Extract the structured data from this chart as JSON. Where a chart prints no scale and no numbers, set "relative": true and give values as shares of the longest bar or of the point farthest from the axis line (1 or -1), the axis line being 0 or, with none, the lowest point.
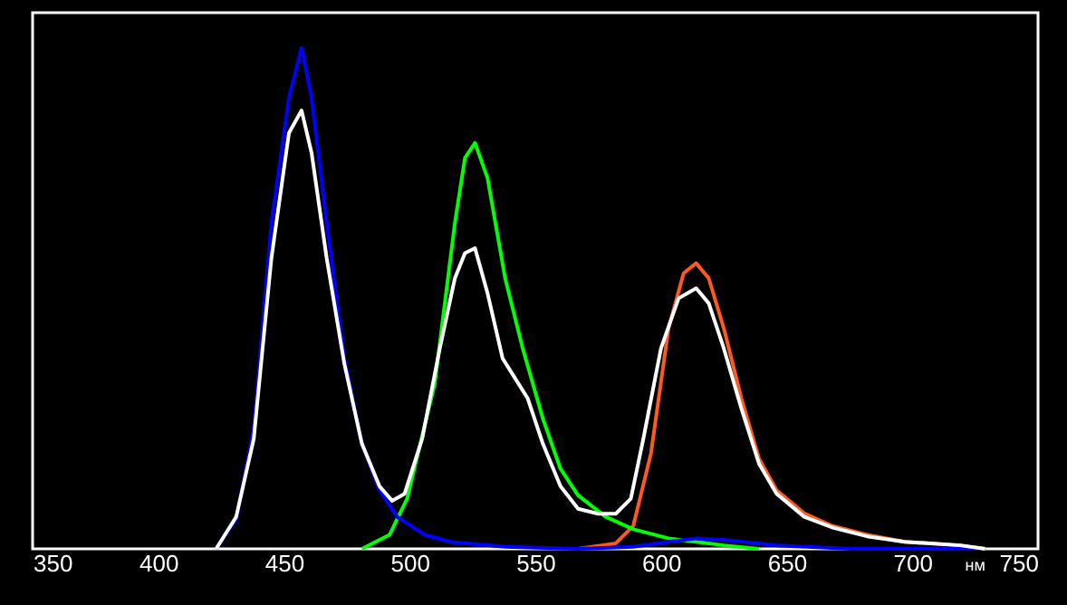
{
  "chart_data": {
    "type": "line",
    "relative": true,
    "xlabel": "нм",
    "xlim": [
      350,
      750
    ],
    "xticks": [
      350,
      400,
      450,
      500,
      550,
      600,
      650,
      700,
      750
    ],
    "grid": false,
    "marker": "none",
    "line_style": "solid",
    "series": [
      {
        "color": "#ff5a1e",
        "x": [
          567,
          582,
          589,
          596,
          603,
          609,
          614,
          619,
          625,
          632,
          639,
          646,
          657,
          668,
          682,
          697,
          719,
          729
        ],
        "values": [
          0,
          0.011,
          0.046,
          0.19,
          0.44,
          0.55,
          0.57,
          0.54,
          0.44,
          0.3,
          0.18,
          0.117,
          0.071,
          0.046,
          0.028,
          0.014,
          0.007,
          0
        ]
      },
      {
        "color": "#00ff00",
        "x": [
          481,
          492,
          499,
          510,
          518,
          522,
          526,
          531,
          538,
          545,
          553,
          560,
          567,
          578,
          589,
          603,
          614,
          625,
          639
        ],
        "values": [
          0,
          0.028,
          0.1,
          0.33,
          0.65,
          0.78,
          0.81,
          0.74,
          0.54,
          0.4,
          0.26,
          0.16,
          0.107,
          0.064,
          0.039,
          0.021,
          0.014,
          0.007,
          0
        ]
      },
      {
        "color": "#0000ff",
        "x": [
          423,
          431,
          438,
          445,
          452,
          457,
          461,
          467,
          474,
          481,
          488,
          495,
          506,
          516,
          538,
          567,
          589,
          603,
          614,
          625,
          646,
          676,
          729
        ],
        "values": [
          0,
          0.06,
          0.24,
          0.65,
          0.9,
          1.0,
          0.9,
          0.65,
          0.38,
          0.21,
          0.117,
          0.064,
          0.028,
          0.014,
          0.004,
          0,
          0.004,
          0.014,
          0.021,
          0.018,
          0.007,
          0,
          0
        ]
      },
      {
        "color": "#ffffff",
        "x": [
          423,
          431,
          438,
          445,
          452,
          457,
          461,
          467,
          474,
          481,
          488,
          493,
          498,
          505,
          512,
          518,
          522,
          526,
          531,
          537,
          542,
          547,
          553,
          560,
          567,
          575,
          582,
          588,
          593,
          600,
          607,
          614,
          619,
          625,
          632,
          639,
          646,
          657,
          668,
          682,
          697,
          719,
          729
        ],
        "values": [
          0,
          0.064,
          0.22,
          0.58,
          0.83,
          0.875,
          0.79,
          0.58,
          0.37,
          0.21,
          0.125,
          0.096,
          0.11,
          0.22,
          0.4,
          0.54,
          0.59,
          0.6,
          0.51,
          0.38,
          0.34,
          0.3,
          0.21,
          0.125,
          0.08,
          0.07,
          0.07,
          0.1,
          0.22,
          0.4,
          0.5,
          0.52,
          0.49,
          0.4,
          0.28,
          0.17,
          0.11,
          0.064,
          0.043,
          0.025,
          0.014,
          0.007,
          0
        ]
      }
    ]
  }
}
